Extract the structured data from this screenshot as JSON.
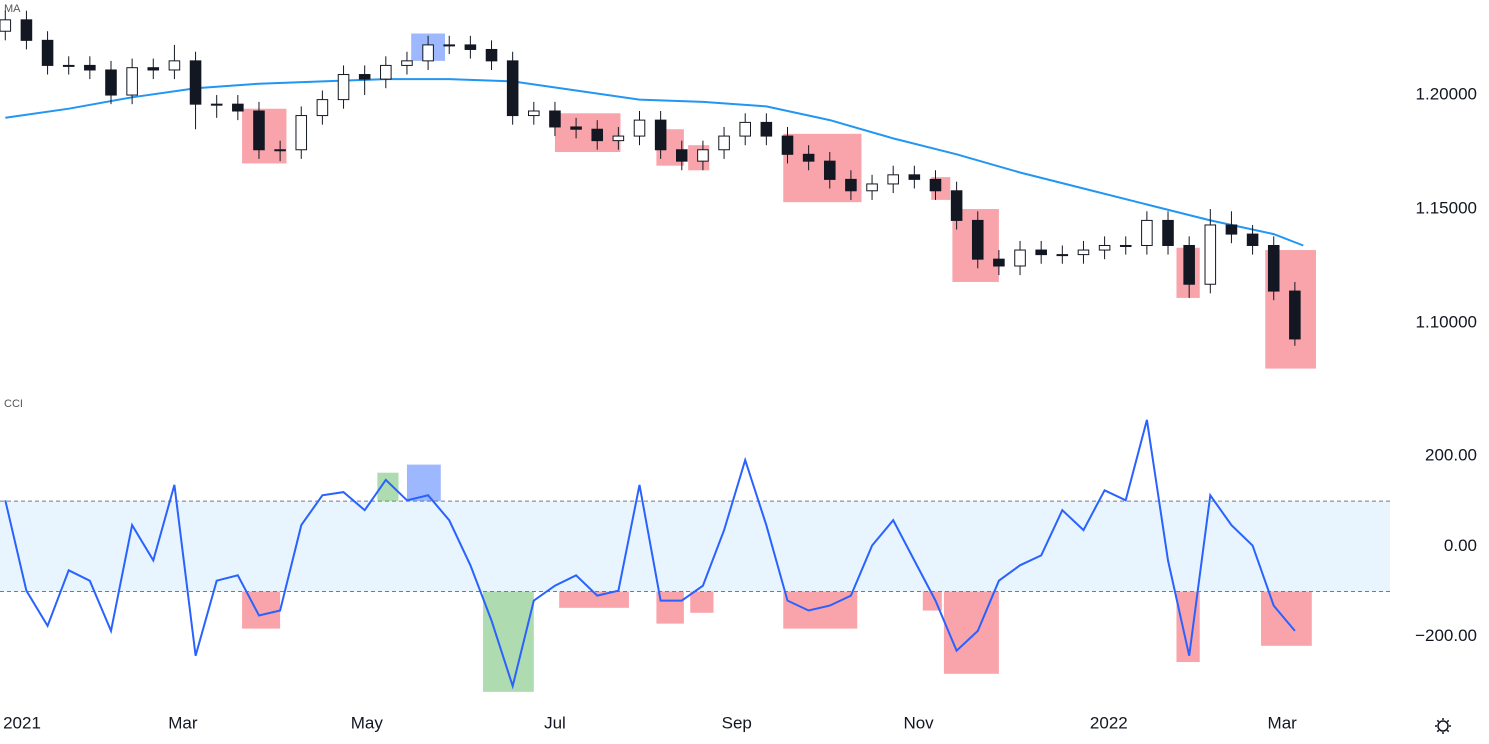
{
  "chart_data": [
    {
      "type": "candlestick",
      "title": "MA",
      "x": [
        0,
        1,
        2,
        3,
        4,
        5,
        6,
        7,
        8,
        9,
        10,
        11,
        12,
        13,
        14,
        15,
        16,
        17,
        18,
        19,
        20,
        21,
        22,
        23,
        24,
        25,
        26,
        27,
        28,
        29,
        30,
        31,
        32,
        33,
        34,
        35,
        36,
        37,
        38,
        39,
        40,
        41,
        42,
        43,
        44,
        45,
        46,
        47,
        48,
        49,
        50,
        51,
        52,
        53,
        54,
        55,
        56,
        57,
        58,
        59,
        60,
        61
      ],
      "open": [
        1.228,
        1.233,
        1.224,
        1.213,
        1.213,
        1.211,
        1.2,
        1.212,
        1.211,
        1.215,
        1.196,
        1.196,
        1.193,
        1.176,
        1.176,
        1.191,
        1.198,
        1.209,
        1.207,
        1.213,
        1.215,
        1.222,
        1.222,
        1.22,
        1.215,
        1.191,
        1.193,
        1.186,
        1.185,
        1.18,
        1.182,
        1.189,
        1.176,
        1.171,
        1.176,
        1.182,
        1.188,
        1.182,
        1.174,
        1.171,
        1.163,
        1.158,
        1.161,
        1.165,
        1.163,
        1.158,
        1.145,
        1.128,
        1.125,
        1.132,
        1.13,
        1.13,
        1.132,
        1.134,
        1.134,
        1.145,
        1.134,
        1.117,
        1.143,
        1.139,
        1.134,
        1.114
      ],
      "high": [
        1.237,
        1.237,
        1.228,
        1.217,
        1.217,
        1.215,
        1.216,
        1.216,
        1.222,
        1.219,
        1.2,
        1.2,
        1.197,
        1.18,
        1.195,
        1.202,
        1.213,
        1.213,
        1.217,
        1.219,
        1.226,
        1.226,
        1.226,
        1.224,
        1.219,
        1.197,
        1.197,
        1.19,
        1.189,
        1.186,
        1.193,
        1.193,
        1.18,
        1.18,
        1.186,
        1.192,
        1.192,
        1.186,
        1.178,
        1.175,
        1.167,
        1.165,
        1.169,
        1.169,
        1.167,
        1.162,
        1.149,
        1.132,
        1.136,
        1.136,
        1.134,
        1.136,
        1.138,
        1.138,
        1.149,
        1.149,
        1.138,
        1.15,
        1.149,
        1.143,
        1.138,
        1.118
      ],
      "low": [
        1.224,
        1.22,
        1.209,
        1.209,
        1.207,
        1.196,
        1.196,
        1.207,
        1.207,
        1.185,
        1.19,
        1.189,
        1.172,
        1.171,
        1.172,
        1.187,
        1.194,
        1.2,
        1.203,
        1.209,
        1.211,
        1.218,
        1.216,
        1.211,
        1.187,
        1.187,
        1.182,
        1.181,
        1.176,
        1.176,
        1.178,
        1.172,
        1.167,
        1.167,
        1.172,
        1.178,
        1.178,
        1.17,
        1.167,
        1.159,
        1.154,
        1.154,
        1.157,
        1.159,
        1.154,
        1.141,
        1.124,
        1.121,
        1.121,
        1.126,
        1.126,
        1.126,
        1.128,
        1.13,
        1.13,
        1.13,
        1.111,
        1.113,
        1.135,
        1.13,
        1.11,
        1.09
      ],
      "close": [
        1.233,
        1.224,
        1.213,
        1.213,
        1.211,
        1.2,
        1.212,
        1.211,
        1.215,
        1.196,
        1.196,
        1.193,
        1.176,
        1.176,
        1.191,
        1.198,
        1.209,
        1.207,
        1.213,
        1.215,
        1.222,
        1.222,
        1.22,
        1.215,
        1.191,
        1.193,
        1.186,
        1.185,
        1.18,
        1.182,
        1.189,
        1.176,
        1.171,
        1.176,
        1.182,
        1.188,
        1.182,
        1.174,
        1.171,
        1.163,
        1.158,
        1.161,
        1.165,
        1.163,
        1.158,
        1.145,
        1.128,
        1.125,
        1.132,
        1.13,
        1.13,
        1.132,
        1.134,
        1.134,
        1.145,
        1.134,
        1.117,
        1.143,
        1.139,
        1.134,
        1.114,
        1.093
      ],
      "ma": {
        "x": [
          0,
          3,
          6,
          9,
          12,
          15,
          18,
          21,
          24,
          27,
          30,
          33,
          36,
          39,
          42,
          45,
          48,
          51,
          54,
          57,
          60,
          61.4
        ],
        "values": [
          1.19,
          1.194,
          1.199,
          1.203,
          1.205,
          1.206,
          1.207,
          1.207,
          1.206,
          1.202,
          1.198,
          1.197,
          1.195,
          1.189,
          1.181,
          1.174,
          1.166,
          1.159,
          1.152,
          1.145,
          1.139,
          1.134
        ],
        "color": "#2196f3"
      },
      "boxes": [
        {
          "x": [
            11.2,
            13.3
          ],
          "y": [
            1.17,
            1.194
          ],
          "color": "#f23645"
        },
        {
          "x": [
            19.2,
            20.8
          ],
          "y": [
            1.215,
            1.227
          ],
          "color": "#2962ff"
        },
        {
          "x": [
            26.0,
            29.1
          ],
          "y": [
            1.175,
            1.192
          ],
          "color": "#f23645"
        },
        {
          "x": [
            30.8,
            32.1
          ],
          "y": [
            1.169,
            1.185
          ],
          "color": "#f23645"
        },
        {
          "x": [
            32.3,
            33.3
          ],
          "y": [
            1.167,
            1.178
          ],
          "color": "#f23645"
        },
        {
          "x": [
            36.8,
            40.5
          ],
          "y": [
            1.153,
            1.183
          ],
          "color": "#f23645"
        },
        {
          "x": [
            43.8,
            44.7
          ],
          "y": [
            1.154,
            1.164
          ],
          "color": "#f23645"
        },
        {
          "x": [
            44.8,
            47.0
          ],
          "y": [
            1.118,
            1.15
          ],
          "color": "#f23645"
        },
        {
          "x": [
            55.4,
            56.5
          ],
          "y": [
            1.111,
            1.133
          ],
          "color": "#f23645"
        },
        {
          "x": [
            59.6,
            62.0
          ],
          "y": [
            1.08,
            1.132
          ],
          "color": "#f23645"
        }
      ],
      "xlim": [
        -0.25,
        65.5
      ],
      "ylim": [
        1.0706,
        1.2417
      ],
      "yticks": [
        {
          "value": 1.2,
          "label": "1.20000"
        },
        {
          "value": 1.15,
          "label": "1.15000"
        },
        {
          "value": 1.1,
          "label": "1.10000"
        }
      ]
    },
    {
      "type": "line",
      "title": "CCI",
      "color": "#2962ff",
      "x": [
        0,
        1,
        2,
        3,
        4,
        5,
        6,
        7,
        8,
        9,
        10,
        11,
        12,
        13,
        14,
        15,
        16,
        17,
        18,
        19,
        20,
        21,
        22,
        23,
        24,
        25,
        26,
        27,
        28,
        29,
        30,
        31,
        32,
        33,
        34,
        35,
        36,
        37,
        38,
        39,
        40,
        41,
        42,
        43,
        44,
        45,
        46,
        47,
        48,
        49,
        50,
        51,
        52,
        53,
        54,
        55,
        56,
        57,
        58,
        59,
        60,
        61
      ],
      "values": [
        102,
        -98,
        -176,
        -53,
        -76,
        -187,
        47,
        -31,
        136,
        -242,
        -76,
        -64,
        -153,
        -142,
        47,
        113,
        120,
        80,
        147,
        102,
        113,
        58,
        -42,
        -164,
        -309,
        -120,
        -87,
        -64,
        -109,
        -98,
        136,
        -120,
        -120,
        -87,
        36,
        191,
        47,
        -120,
        -142,
        -131,
        -109,
        2,
        58,
        -31,
        -120,
        -231,
        -187,
        -76,
        -42,
        -20,
        80,
        36,
        124,
        102,
        280,
        -31,
        -242,
        113,
        47,
        2,
        -131,
        -187
      ],
      "levels": [
        -100,
        100
      ],
      "band_color": "#2196f3",
      "boxes": [
        {
          "x": [
            11.2,
            13.0
          ],
          "y": [
            -182,
            -100
          ],
          "color": "#f23645"
        },
        {
          "x": [
            17.6,
            18.6
          ],
          "y": [
            100,
            163
          ],
          "color": "#4caf50"
        },
        {
          "x": [
            19.0,
            20.6
          ],
          "y": [
            100,
            181
          ],
          "color": "#2962ff"
        },
        {
          "x": [
            22.6,
            25.0
          ],
          "y": [
            -322,
            -100
          ],
          "color": "#4caf50"
        },
        {
          "x": [
            26.2,
            29.5
          ],
          "y": [
            -136,
            -100
          ],
          "color": "#f23645"
        },
        {
          "x": [
            30.8,
            32.1
          ],
          "y": [
            -171,
            -100
          ],
          "color": "#f23645"
        },
        {
          "x": [
            32.4,
            33.5
          ],
          "y": [
            -147,
            -100
          ],
          "color": "#f23645"
        },
        {
          "x": [
            36.8,
            40.3
          ],
          "y": [
            -182,
            -100
          ],
          "color": "#f23645"
        },
        {
          "x": [
            43.4,
            44.3
          ],
          "y": [
            -142,
            -100
          ],
          "color": "#f23645"
        },
        {
          "x": [
            44.4,
            47.0
          ],
          "y": [
            -282,
            -100
          ],
          "color": "#f23645"
        },
        {
          "x": [
            55.4,
            56.5
          ],
          "y": [
            -256,
            -100
          ],
          "color": "#f23645"
        },
        {
          "x": [
            59.4,
            61.8
          ],
          "y": [
            -220,
            -100
          ],
          "color": "#f23645"
        }
      ],
      "xlim": [
        -0.25,
        65.5
      ],
      "ylim": [
        -340,
        335
      ],
      "yticks": [
        {
          "value": 200,
          "label": "200.00"
        },
        {
          "value": 0,
          "label": "0.00"
        },
        {
          "value": -200,
          "label": "−200.00"
        }
      ],
      "xticks": [
        {
          "value": 0,
          "label": "2021"
        },
        {
          "value": 8.4,
          "label": "Mar"
        },
        {
          "value": 17.1,
          "label": "May"
        },
        {
          "value": 26.0,
          "label": "Jul"
        },
        {
          "value": 34.6,
          "label": "Sep"
        },
        {
          "value": 43.2,
          "label": "Nov"
        },
        {
          "value": 52.2,
          "label": "2022"
        },
        {
          "value": 60.4,
          "label": "Mar"
        }
      ]
    }
  ]
}
